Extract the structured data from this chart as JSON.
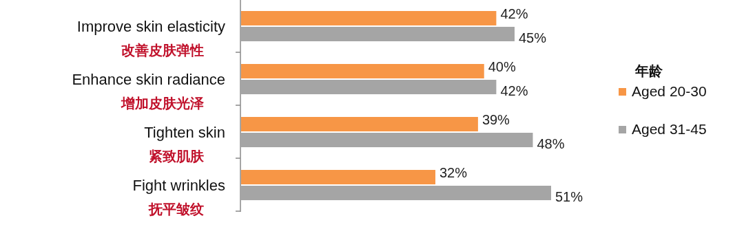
{
  "chart_data": {
    "type": "bar",
    "orientation": "horizontal",
    "legend": "right",
    "legend_title": "年龄",
    "categories": [
      "Improve skin elasticity\n改善皮肤弹性",
      "Enhance skin radiance\n增加皮肤光泽",
      "Tighten skin\n紧致肌肤",
      "Fight wrinkles\n抚平皱纹"
    ],
    "series": [
      {
        "name": "Aged 20-30",
        "color": "#f79646",
        "values": [
          42,
          40,
          39,
          32
        ],
        "value_labels": [
          "42%",
          "40%",
          "39%",
          "32%"
        ]
      },
      {
        "name": "Aged 31-45",
        "color": "#a5a5a5",
        "values": [
          45,
          42,
          48,
          51
        ],
        "value_labels": [
          "45%",
          "42%",
          "48%",
          "51%"
        ]
      }
    ]
  }
}
